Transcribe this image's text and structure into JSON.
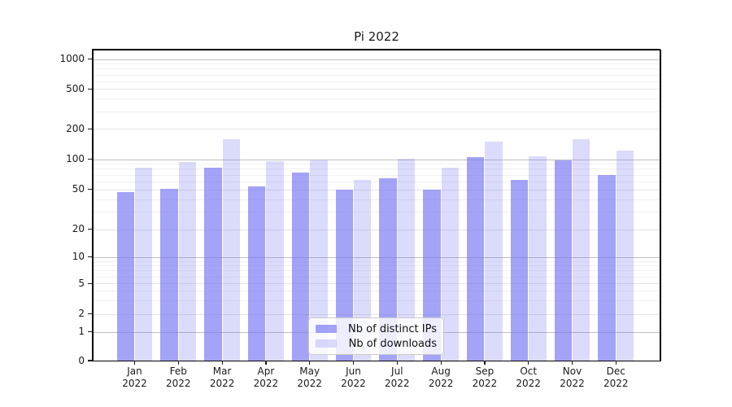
{
  "title": "Pi 2022",
  "legend": {
    "items": [
      {
        "label": "Nb of distinct IPs",
        "swatch_color": "#a3a3f6"
      },
      {
        "label": "Nb of downloads",
        "swatch_color": "#dbdbfa"
      }
    ]
  },
  "chart_data": {
    "type": "bar",
    "title": "Pi 2022",
    "yscale": "symlog",
    "ylim": [
      0,
      1000
    ],
    "grid": true,
    "legend_position": "lower center",
    "y_ticks": [
      0,
      1,
      2,
      5,
      10,
      20,
      50,
      100,
      200,
      500,
      1000
    ],
    "x_tick_months": [
      "Jan",
      "Feb",
      "Mar",
      "Apr",
      "May",
      "Jun",
      "Jul",
      "Aug",
      "Sep",
      "Oct",
      "Nov",
      "Dec"
    ],
    "x_tick_year": "2022",
    "categories": [
      "Jan 2022",
      "Feb 2022",
      "Mar 2022",
      "Apr 2022",
      "May 2022",
      "Jun 2022",
      "Jul 2022",
      "Aug 2022",
      "Sep 2022",
      "Oct 2022",
      "Nov 2022",
      "Dec 2022"
    ],
    "series": [
      {
        "name": "Nb of distinct IPs",
        "color": "#a3a3f6",
        "values": [
          47,
          51,
          82,
          54,
          73,
          50,
          64,
          50,
          104,
          62,
          97,
          70
        ]
      },
      {
        "name": "Nb of downloads",
        "color": "#dbdbfa",
        "values": [
          82,
          93,
          157,
          95,
          98,
          62,
          101,
          82,
          150,
          107,
          157,
          122
        ]
      }
    ]
  }
}
